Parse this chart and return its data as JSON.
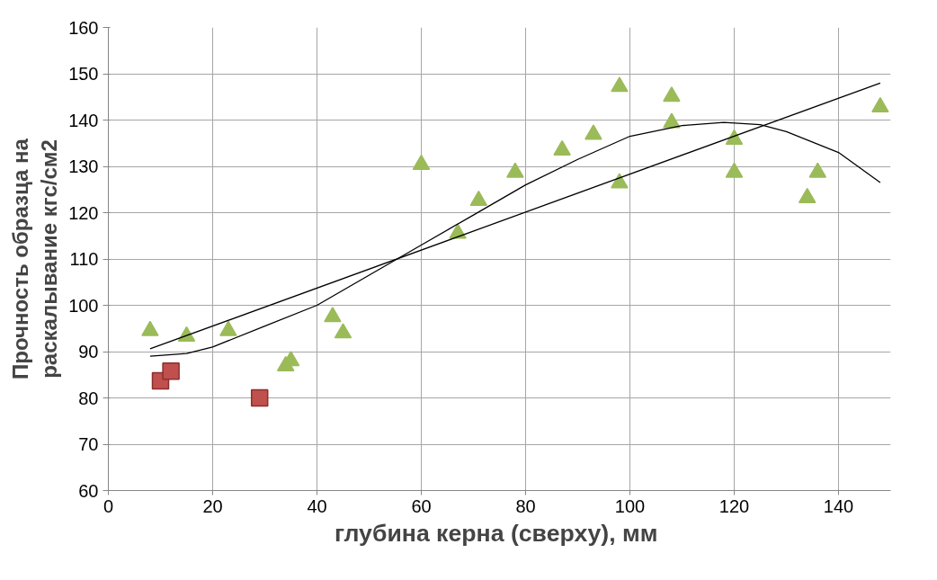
{
  "chart_data": {
    "type": "scatter",
    "xlabel": "глубина  керна (сверху), мм",
    "ylabel": "Прочность образца на раскалывание кгс/см2",
    "xlim": [
      0,
      150
    ],
    "xticks": [
      0,
      20,
      40,
      60,
      80,
      100,
      120,
      140
    ],
    "ylim": [
      60,
      160
    ],
    "yticks": [
      60,
      70,
      80,
      90,
      100,
      110,
      120,
      130,
      140,
      150,
      160
    ],
    "grid": true,
    "series": [
      {
        "marker": "triangle",
        "color": "#9bbb59",
        "x": [
          8,
          15,
          23,
          34,
          35,
          43,
          45,
          60,
          67,
          71,
          78,
          87,
          93,
          98,
          98,
          108,
          108,
          120,
          120,
          134,
          136,
          148
        ],
        "values": [
          94.5,
          93.3,
          94.5,
          86.9,
          88,
          97.5,
          94,
          130.4,
          115.5,
          122.6,
          128.7,
          133.5,
          136.9,
          147.2,
          126.4,
          145.1,
          139.4,
          135.8,
          128.7,
          123.2,
          128.7,
          142.8
        ]
      },
      {
        "marker": "square",
        "color": "#c0504d",
        "x": [
          10,
          12,
          29
        ],
        "values": [
          83.7,
          85.8,
          80
        ]
      },
      {
        "type": "line",
        "marker": "none",
        "color": "#000000",
        "x": [
          8,
          148
        ],
        "values": [
          90.6,
          148
        ]
      },
      {
        "type": "line",
        "marker": "none",
        "color": "#000000",
        "x": [
          8,
          15,
          20,
          30,
          40,
          50,
          60,
          70,
          80,
          90,
          100,
          110,
          118,
          125,
          130,
          140,
          148
        ],
        "values": [
          89,
          89.6,
          91,
          95.5,
          100,
          106.5,
          113,
          119.5,
          126,
          131.5,
          136.5,
          138.8,
          139.5,
          139,
          137.5,
          133,
          126.5
        ]
      }
    ]
  }
}
